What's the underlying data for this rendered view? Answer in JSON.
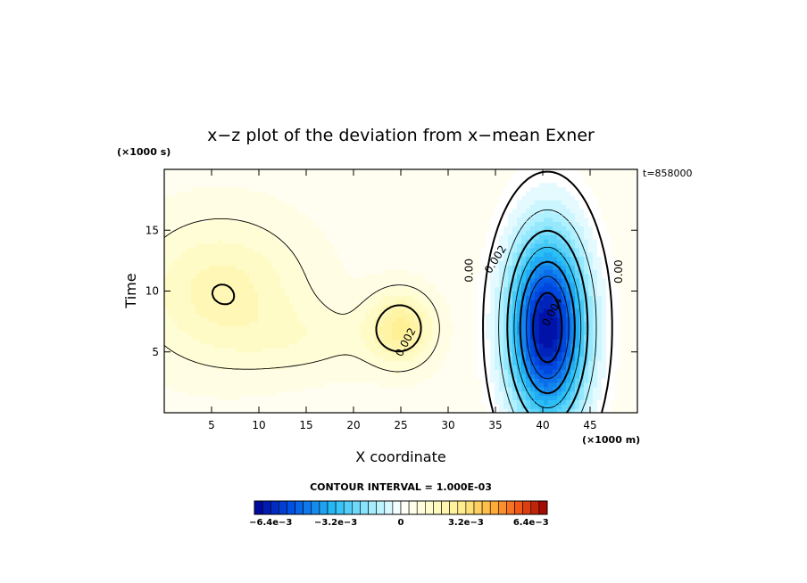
{
  "chart_data": {
    "type": "contour",
    "title": "x−z plot of the deviation from x−mean Exner",
    "xlabel": "X coordinate",
    "ylabel": "Time",
    "x_unit_label": "(×1000 m)",
    "y_unit_label": "(×1000 s)",
    "time_stamp": "t=858000",
    "xlim": [
      0,
      50
    ],
    "ylim": [
      0,
      20
    ],
    "x_ticks": [
      5,
      10,
      15,
      20,
      25,
      30,
      35,
      40,
      45
    ],
    "y_ticks": [
      5,
      10,
      15
    ],
    "contour_interval_text": "CONTOUR INTERVAL = 1.000E-03",
    "contour_labels": [
      {
        "text": "0.002",
        "x": 25.5,
        "y": 5.8,
        "rot": -62
      },
      {
        "text": "0.00",
        "x": 32.2,
        "y": 11.7,
        "rot": -90
      },
      {
        "text": "0.002",
        "x": 35.0,
        "y": 12.6,
        "rot": -58
      },
      {
        "text": "0.004",
        "x": 41.0,
        "y": 8.3,
        "rot": -62
      },
      {
        "text": "0.00",
        "x": 48.0,
        "y": 11.6,
        "rot": -90
      }
    ],
    "field_blobs": [
      {
        "x": 6.0,
        "y": 10.0,
        "sx": 9.0,
        "sy": 6.0,
        "amp": 0.0016
      },
      {
        "x": 25.0,
        "y": 7.0,
        "sx": 3.5,
        "sy": 3.0,
        "amp": 0.0022
      },
      {
        "x": 16.0,
        "y": 6.0,
        "sx": 8.0,
        "sy": 3.0,
        "amp": 0.0006
      },
      {
        "x": 40.5,
        "y": 7.0,
        "sx": 4.0,
        "sy": 7.5,
        "amp": -0.0074
      }
    ],
    "field_background": 0.0004,
    "colorbar": {
      "min": -0.0072,
      "max": 0.0072,
      "bins": 36,
      "tick_labels": [
        {
          "value": -0.0064,
          "label": "−6.4e−3"
        },
        {
          "value": -0.0032,
          "label": "−3.2e−3"
        },
        {
          "value": 0,
          "label": "0"
        },
        {
          "value": 0.0032,
          "label": "3.2e−3"
        },
        {
          "value": 0.0064,
          "label": "6.4e−3"
        }
      ]
    }
  }
}
